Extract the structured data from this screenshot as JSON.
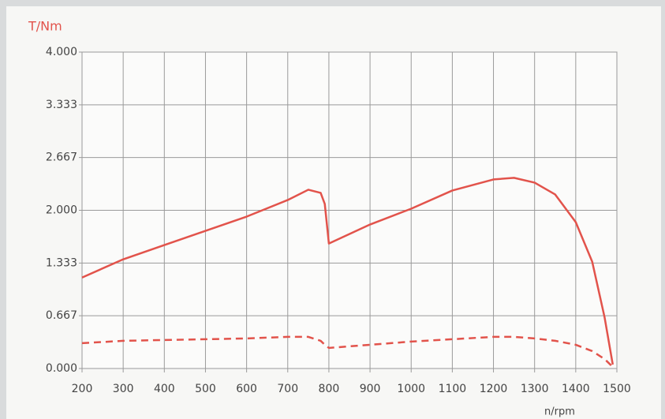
{
  "chart_data": {
    "type": "line",
    "y_label": "T/Nm",
    "x_label": "n/rpm",
    "x": [
      200,
      300,
      400,
      500,
      600,
      700,
      750,
      780,
      790,
      800,
      900,
      1000,
      1100,
      1200,
      1250,
      1300,
      1350,
      1400,
      1440,
      1470,
      1490
    ],
    "series": [
      {
        "color": "#e2534b",
        "dashed": false,
        "values": [
          1.15,
          1.38,
          1.56,
          1.74,
          1.92,
          2.13,
          2.26,
          2.22,
          2.08,
          1.58,
          1.82,
          2.02,
          2.25,
          2.39,
          2.41,
          2.35,
          2.2,
          1.85,
          1.35,
          0.65,
          0.05
        ]
      },
      {
        "color": "#e2534b",
        "dashed": true,
        "values": [
          0.32,
          0.35,
          0.36,
          0.37,
          0.38,
          0.4,
          0.4,
          0.35,
          0.3,
          0.26,
          0.3,
          0.34,
          0.37,
          0.4,
          0.4,
          0.38,
          0.35,
          0.3,
          0.22,
          0.12,
          0.02
        ]
      }
    ],
    "xlim": [
      200,
      1500
    ],
    "xticks": [
      200,
      300,
      400,
      500,
      600,
      700,
      800,
      900,
      1000,
      1100,
      1200,
      1300,
      1400,
      1500
    ],
    "ylim": [
      0,
      4
    ],
    "yticks": [
      {
        "value": 0,
        "label": "0.000"
      },
      {
        "value": 0.667,
        "label": "0.667"
      },
      {
        "value": 1.333,
        "label": "1.333"
      },
      {
        "value": 2,
        "label": "2.000"
      },
      {
        "value": 2.667,
        "label": "2.667"
      },
      {
        "value": 3.333,
        "label": "3.333"
      },
      {
        "value": 4,
        "label": "4.000"
      }
    ],
    "grid": true
  }
}
